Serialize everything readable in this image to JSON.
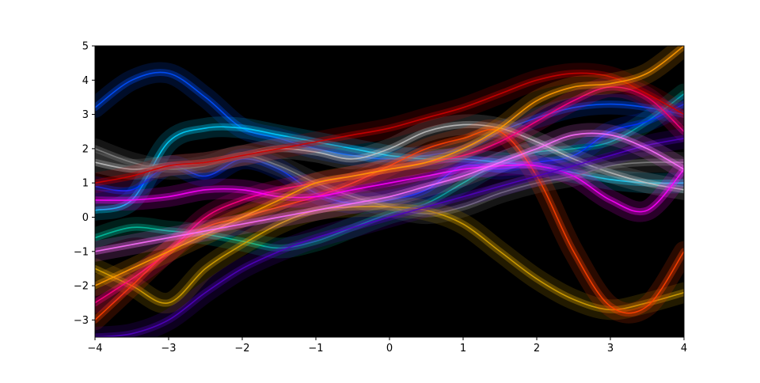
{
  "chart_data": {
    "type": "line",
    "title": "",
    "xlabel": "",
    "ylabel": "",
    "xlim": [
      -4,
      4
    ],
    "ylim": [
      -3.5,
      5
    ],
    "grid": false,
    "legend": "none",
    "background": "#000000",
    "x_ticks": [
      -4,
      -3,
      -2,
      -1,
      0,
      1,
      2,
      3,
      4
    ],
    "x_tick_labels": [
      "−4",
      "−3",
      "−2",
      "−1",
      "0",
      "1",
      "2",
      "3",
      "4"
    ],
    "y_ticks": [
      -3,
      -2,
      -1,
      0,
      1,
      2,
      3,
      4,
      5
    ],
    "y_tick_labels": [
      "−3",
      "−2",
      "−1",
      "0",
      "1",
      "2",
      "3",
      "4",
      "5"
    ],
    "x": [
      -4,
      -3.5,
      -3,
      -2.5,
      -2,
      -1.5,
      -1,
      -0.5,
      0,
      0.5,
      1,
      1.5,
      2,
      2.5,
      3,
      3.5,
      4
    ],
    "series": [
      {
        "color": "#0050ff",
        "values": [
          3.2,
          4.0,
          4.2,
          3.5,
          2.6,
          2.3,
          2.0,
          1.8,
          1.7,
          1.8,
          2.0,
          2.5,
          2.9,
          3.2,
          3.3,
          3.2,
          3.0
        ]
      },
      {
        "color": "#00d0ff",
        "values": [
          0.2,
          0.5,
          2.2,
          2.6,
          2.6,
          2.4,
          2.2,
          2.0,
          1.8,
          1.7,
          1.7,
          1.6,
          1.5,
          1.3,
          1.1,
          1.0,
          1.0
        ]
      },
      {
        "color": "#00c0a0",
        "values": [
          -0.6,
          -0.3,
          -0.4,
          -0.5,
          -0.7,
          -0.9,
          -0.7,
          -0.3,
          0.1,
          0.4,
          1.0,
          1.6,
          1.9,
          2.0,
          2.2,
          2.8,
          3.6
        ]
      },
      {
        "color": "#0030ff",
        "values": [
          0.9,
          0.8,
          1.5,
          1.2,
          1.7,
          1.4,
          0.7,
          0.4,
          0.5,
          0.8,
          1.5,
          1.4,
          1.6,
          1.8,
          2.5,
          2.8,
          3.3
        ]
      },
      {
        "color": "#c0c0c0",
        "values": [
          1.6,
          1.4,
          1.5,
          1.6,
          1.8,
          2.0,
          1.9,
          1.7,
          2.0,
          2.5,
          2.7,
          2.6,
          2.2,
          1.7,
          1.3,
          1.0,
          0.8
        ]
      },
      {
        "color": "#808080",
        "values": [
          2.0,
          1.6,
          1.4,
          1.5,
          1.8,
          1.5,
          1.0,
          0.6,
          0.3,
          0.1,
          0.3,
          0.7,
          1.0,
          1.2,
          1.5,
          1.6,
          1.6
        ]
      },
      {
        "color": "#d4a000",
        "values": [
          -1.5,
          -2.0,
          -2.5,
          -1.5,
          -0.8,
          -0.2,
          0.2,
          0.3,
          0.3,
          0.2,
          -0.2,
          -1.0,
          -1.8,
          -2.4,
          -2.7,
          -2.5,
          -2.2
        ]
      },
      {
        "color": "#ff4000",
        "values": [
          -3.0,
          -2.0,
          -1.0,
          -0.3,
          0.0,
          0.3,
          0.6,
          1.0,
          1.5,
          2.0,
          2.3,
          2.5,
          1.2,
          -1.0,
          -2.6,
          -2.6,
          -1.0
        ]
      },
      {
        "color": "#ff0080",
        "values": [
          -2.5,
          -1.8,
          -1.0,
          0.0,
          0.5,
          0.8,
          1.0,
          1.2,
          1.4,
          1.6,
          1.8,
          2.2,
          2.8,
          3.4,
          3.8,
          3.5,
          2.5
        ]
      },
      {
        "color": "#cc0000",
        "values": [
          1.0,
          1.2,
          1.5,
          1.6,
          1.8,
          2.0,
          2.2,
          2.4,
          2.6,
          2.9,
          3.2,
          3.6,
          4.0,
          4.2,
          4.1,
          3.6,
          3.0
        ]
      },
      {
        "color": "#ff00ff",
        "values": [
          0.5,
          0.5,
          0.6,
          0.8,
          0.8,
          0.6,
          0.6,
          0.8,
          1.0,
          1.2,
          1.4,
          1.5,
          1.5,
          1.2,
          0.5,
          0.2,
          1.4
        ]
      },
      {
        "color": "#ff9900",
        "values": [
          -2.0,
          -1.5,
          -1.0,
          -0.5,
          0.0,
          0.5,
          1.0,
          1.2,
          1.4,
          1.6,
          2.0,
          2.6,
          3.4,
          3.8,
          3.9,
          4.2,
          5.0
        ]
      },
      {
        "color": "#5000c0",
        "values": [
          -3.5,
          -3.4,
          -3.0,
          -2.2,
          -1.5,
          -1.0,
          -0.6,
          -0.3,
          0.0,
          0.3,
          0.6,
          0.9,
          1.2,
          1.5,
          1.8,
          2.1,
          2.3
        ]
      },
      {
        "color": "#ff70ff",
        "values": [
          -1.0,
          -0.8,
          -0.6,
          -0.4,
          -0.2,
          0.0,
          0.2,
          0.4,
          0.6,
          0.9,
          1.2,
          1.6,
          2.0,
          2.4,
          2.4,
          2.0,
          1.4
        ]
      }
    ]
  }
}
